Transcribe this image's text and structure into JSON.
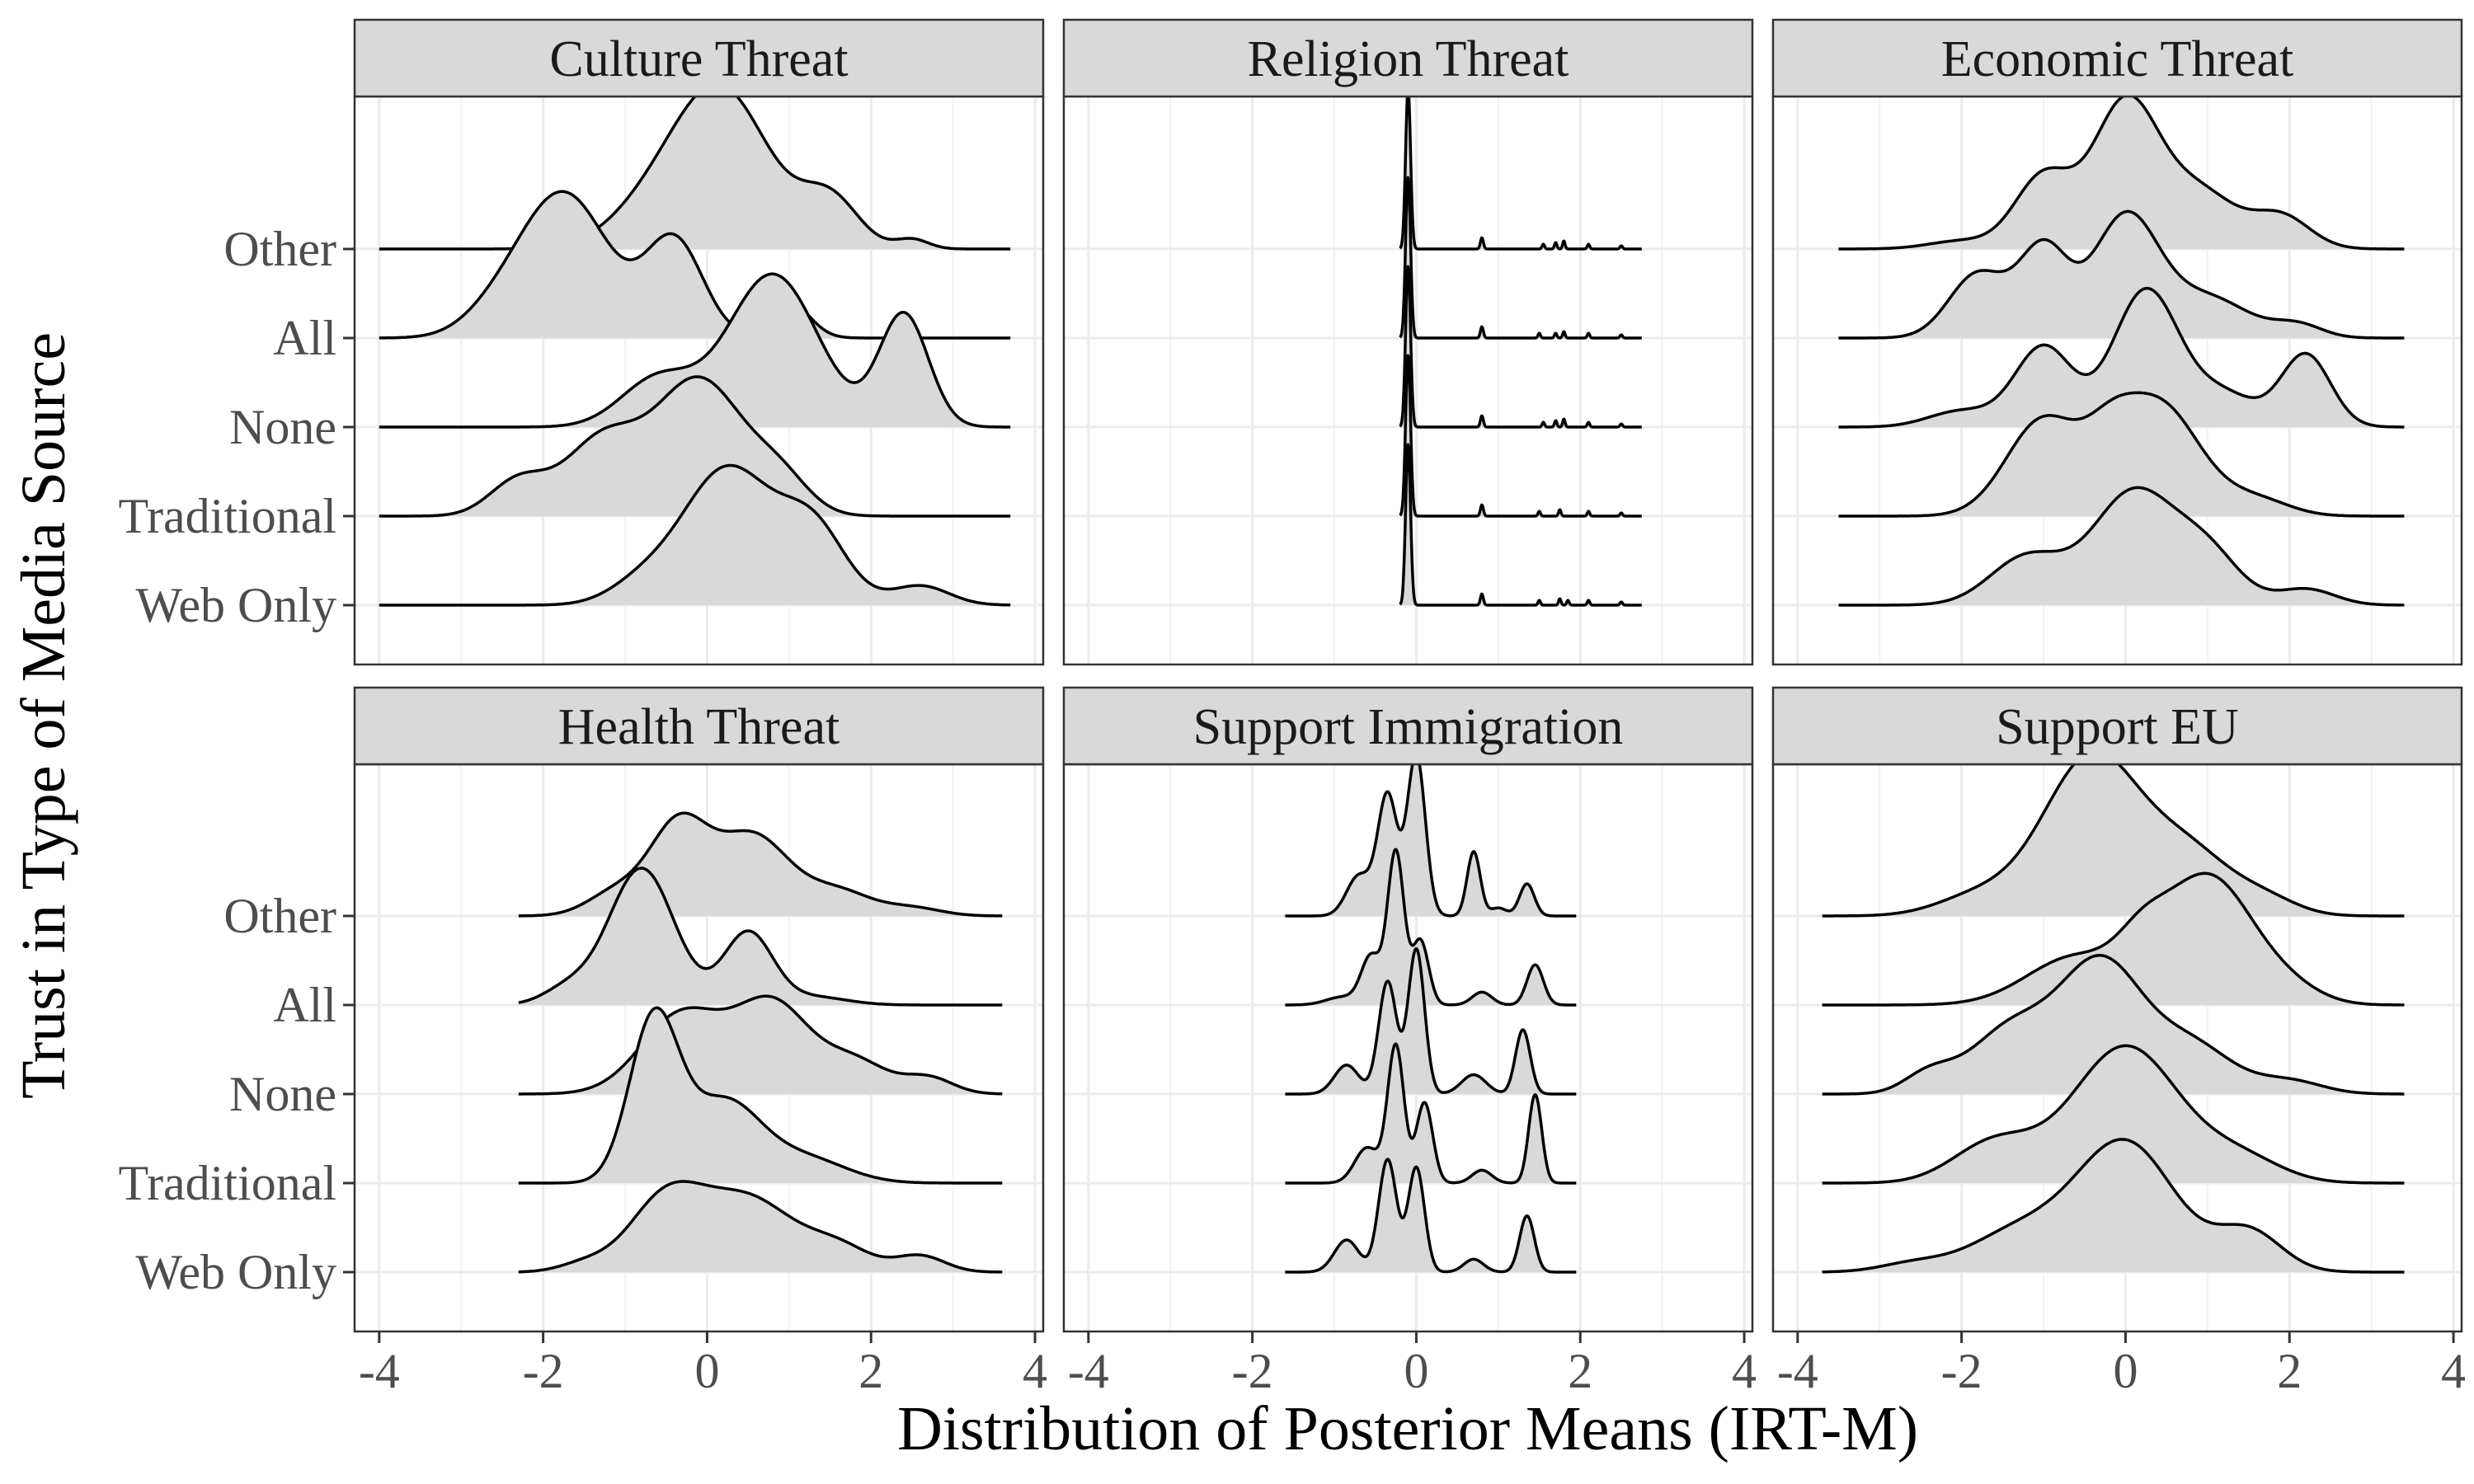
{
  "chart_data": {
    "type": "ridgeline",
    "layout": "facet grid, 2 rows x 3 columns",
    "xlabel": "Distribution of Posterior Means (IRT-M)",
    "ylabel": "Trust in Type of Media Source",
    "x_ticks": [
      "-4",
      "-2",
      "0",
      "2",
      "4"
    ],
    "xlim": [
      -4.3,
      4.1
    ],
    "grid": true,
    "fill_color": "#d9d9d9",
    "line_color": "#000000",
    "strip_color": "#d9d9d9",
    "groups": [
      "Other",
      "All",
      "None",
      "Traditional",
      "Web Only"
    ],
    "panels": [
      {
        "title": "Culture Threat",
        "range": [
          -4.0,
          3.7
        ],
        "series": [
          {
            "name": "Other",
            "peaks": [
              [
                0.15,
                1.0,
                0.6
              ],
              [
                1.5,
                0.3,
                0.35
              ],
              [
                -0.8,
                0.15,
                0.5
              ],
              [
                2.5,
                0.06,
                0.2
              ]
            ]
          },
          {
            "name": "All",
            "peaks": [
              [
                -1.75,
                0.9,
                0.55
              ],
              [
                -0.4,
                0.6,
                0.35
              ],
              [
                1.0,
                0.22,
                0.25
              ],
              [
                -2.6,
                0.1,
                0.4
              ]
            ]
          },
          {
            "name": "None",
            "peaks": [
              [
                0.8,
                0.95,
                0.55
              ],
              [
                2.4,
                0.7,
                0.3
              ],
              [
                -0.6,
                0.3,
                0.45
              ]
            ]
          },
          {
            "name": "Traditional",
            "peaks": [
              [
                -0.1,
                0.85,
                0.55
              ],
              [
                -1.3,
                0.45,
                0.45
              ],
              [
                -2.3,
                0.22,
                0.35
              ],
              [
                0.9,
                0.2,
                0.35
              ]
            ]
          },
          {
            "name": "Web Only",
            "peaks": [
              [
                0.25,
                0.85,
                0.55
              ],
              [
                1.3,
                0.45,
                0.4
              ],
              [
                -0.8,
                0.12,
                0.4
              ],
              [
                2.6,
                0.12,
                0.35
              ]
            ]
          }
        ]
      },
      {
        "title": "Religion Threat",
        "range": [
          -0.2,
          2.75
        ],
        "series": [
          {
            "name": "Other",
            "peaks": [
              [
                -0.1,
                1.0,
                0.03
              ],
              [
                0.8,
                0.07,
                0.018
              ],
              [
                1.55,
                0.03,
                0.015
              ],
              [
                1.7,
                0.04,
                0.015
              ],
              [
                1.8,
                0.05,
                0.015
              ],
              [
                2.1,
                0.03,
                0.015
              ],
              [
                2.5,
                0.02,
                0.015
              ]
            ]
          },
          {
            "name": "All",
            "peaks": [
              [
                -0.1,
                1.0,
                0.03
              ],
              [
                0.8,
                0.07,
                0.018
              ],
              [
                1.5,
                0.03,
                0.015
              ],
              [
                1.7,
                0.03,
                0.015
              ],
              [
                1.8,
                0.04,
                0.015
              ],
              [
                2.1,
                0.03,
                0.015
              ],
              [
                2.5,
                0.02,
                0.015
              ]
            ]
          },
          {
            "name": "None",
            "peaks": [
              [
                -0.1,
                1.0,
                0.03
              ],
              [
                0.8,
                0.07,
                0.018
              ],
              [
                1.55,
                0.03,
                0.015
              ],
              [
                1.7,
                0.04,
                0.015
              ],
              [
                1.8,
                0.05,
                0.015
              ],
              [
                2.1,
                0.03,
                0.015
              ],
              [
                2.5,
                0.02,
                0.015
              ]
            ]
          },
          {
            "name": "Traditional",
            "peaks": [
              [
                -0.1,
                1.0,
                0.03
              ],
              [
                0.8,
                0.07,
                0.018
              ],
              [
                1.5,
                0.03,
                0.015
              ],
              [
                1.75,
                0.04,
                0.015
              ],
              [
                2.1,
                0.03,
                0.015
              ],
              [
                2.5,
                0.02,
                0.015
              ]
            ]
          },
          {
            "name": "Web Only",
            "peaks": [
              [
                -0.1,
                1.0,
                0.03
              ],
              [
                0.8,
                0.07,
                0.018
              ],
              [
                1.5,
                0.03,
                0.015
              ],
              [
                1.75,
                0.04,
                0.015
              ],
              [
                1.85,
                0.03,
                0.015
              ],
              [
                2.1,
                0.03,
                0.015
              ],
              [
                2.5,
                0.02,
                0.015
              ]
            ]
          }
        ]
      },
      {
        "title": "Economic Threat",
        "range": [
          -3.5,
          3.4
        ],
        "series": [
          {
            "name": "Other",
            "peaks": [
              [
                0.0,
                0.9,
                0.4
              ],
              [
                -1.0,
                0.45,
                0.35
              ],
              [
                0.9,
                0.35,
                0.45
              ],
              [
                1.9,
                0.2,
                0.35
              ],
              [
                -2.0,
                0.05,
                0.4
              ]
            ]
          },
          {
            "name": "All",
            "peaks": [
              [
                0.0,
                0.75,
                0.4
              ],
              [
                -1.0,
                0.55,
                0.3
              ],
              [
                -1.8,
                0.4,
                0.35
              ],
              [
                1.0,
                0.25,
                0.5
              ],
              [
                2.1,
                0.08,
                0.3
              ]
            ]
          },
          {
            "name": "None",
            "peaks": [
              [
                0.25,
                0.85,
                0.4
              ],
              [
                -1.0,
                0.5,
                0.35
              ],
              [
                2.2,
                0.45,
                0.3
              ],
              [
                1.2,
                0.2,
                0.4
              ],
              [
                -2.0,
                0.1,
                0.4
              ]
            ]
          },
          {
            "name": "Traditional",
            "peaks": [
              [
                -1.0,
                0.6,
                0.45
              ],
              [
                0.4,
                0.7,
                0.5
              ],
              [
                -0.2,
                0.25,
                0.3
              ],
              [
                1.6,
                0.1,
                0.4
              ]
            ]
          },
          {
            "name": "Web Only",
            "peaks": [
              [
                0.1,
                0.7,
                0.5
              ],
              [
                -1.2,
                0.3,
                0.45
              ],
              [
                1.0,
                0.3,
                0.4
              ],
              [
                2.2,
                0.1,
                0.35
              ]
            ]
          }
        ]
      },
      {
        "title": "Health Threat",
        "range": [
          -2.3,
          3.6
        ],
        "series": [
          {
            "name": "Other",
            "peaks": [
              [
                -0.35,
                0.55,
                0.35
              ],
              [
                0.55,
                0.5,
                0.45
              ],
              [
                -1.1,
                0.15,
                0.35
              ],
              [
                1.6,
                0.15,
                0.4
              ],
              [
                2.5,
                0.05,
                0.35
              ]
            ]
          },
          {
            "name": "All",
            "peaks": [
              [
                -0.8,
                0.85,
                0.4
              ],
              [
                0.5,
                0.45,
                0.3
              ],
              [
                1.3,
                0.05,
                0.4
              ],
              [
                -1.7,
                0.1,
                0.3
              ]
            ]
          },
          {
            "name": "None",
            "peaks": [
              [
                0.8,
                0.55,
                0.45
              ],
              [
                -0.3,
                0.5,
                0.5
              ],
              [
                1.8,
                0.2,
                0.4
              ],
              [
                2.7,
                0.1,
                0.3
              ]
            ]
          },
          {
            "name": "Traditional",
            "peaks": [
              [
                -0.65,
                1.0,
                0.3
              ],
              [
                0.2,
                0.5,
                0.45
              ],
              [
                1.2,
                0.15,
                0.5
              ]
            ]
          },
          {
            "name": "Web Only",
            "peaks": [
              [
                -0.5,
                0.45,
                0.45
              ],
              [
                0.5,
                0.45,
                0.55
              ],
              [
                1.6,
                0.15,
                0.4
              ],
              [
                2.6,
                0.1,
                0.3
              ],
              [
                -1.5,
                0.05,
                0.3
              ]
            ]
          }
        ]
      },
      {
        "title": "Support Immigration",
        "range": [
          -1.6,
          1.95
        ],
        "series": [
          {
            "name": "Other",
            "peaks": [
              [
                -0.35,
                0.75,
                0.12
              ],
              [
                0.0,
                1.0,
                0.11
              ],
              [
                -0.7,
                0.25,
                0.15
              ],
              [
                0.7,
                0.4,
                0.08
              ],
              [
                1.35,
                0.2,
                0.09
              ],
              [
                1.0,
                0.05,
                0.1
              ]
            ]
          },
          {
            "name": "All",
            "peaks": [
              [
                -0.25,
                0.95,
                0.1
              ],
              [
                0.05,
                0.4,
                0.1
              ],
              [
                -0.55,
                0.3,
                0.12
              ],
              [
                -0.9,
                0.05,
                0.2
              ],
              [
                0.8,
                0.08,
                0.12
              ],
              [
                1.45,
                0.25,
                0.1
              ]
            ]
          },
          {
            "name": "None",
            "peaks": [
              [
                -0.35,
                0.7,
                0.11
              ],
              [
                0.0,
                0.9,
                0.1
              ],
              [
                -0.85,
                0.18,
                0.15
              ],
              [
                0.7,
                0.12,
                0.15
              ],
              [
                1.3,
                0.4,
                0.09
              ]
            ]
          },
          {
            "name": "Traditional",
            "peaks": [
              [
                -0.25,
                0.85,
                0.1
              ],
              [
                0.1,
                0.5,
                0.1
              ],
              [
                -0.6,
                0.22,
                0.15
              ],
              [
                0.8,
                0.08,
                0.12
              ],
              [
                1.45,
                0.55,
                0.08
              ]
            ]
          },
          {
            "name": "Web Only",
            "peaks": [
              [
                -0.35,
                0.7,
                0.11
              ],
              [
                0.0,
                0.65,
                0.1
              ],
              [
                -0.85,
                0.2,
                0.15
              ],
              [
                0.7,
                0.08,
                0.12
              ],
              [
                1.35,
                0.35,
                0.09
              ]
            ]
          }
        ]
      },
      {
        "title": "Support EU",
        "range": [
          -3.7,
          3.4
        ],
        "series": [
          {
            "name": "Other",
            "peaks": [
              [
                -0.4,
                1.0,
                0.6
              ],
              [
                0.8,
                0.35,
                0.5
              ],
              [
                -1.8,
                0.12,
                0.5
              ],
              [
                1.7,
                0.1,
                0.4
              ]
            ]
          },
          {
            "name": "All",
            "peaks": [
              [
                1.0,
                0.8,
                0.55
              ],
              [
                -0.6,
                0.3,
                0.6
              ],
              [
                0.2,
                0.2,
                0.3
              ],
              [
                2.0,
                0.08,
                0.4
              ]
            ]
          },
          {
            "name": "None",
            "peaks": [
              [
                -0.3,
                0.8,
                0.5
              ],
              [
                -1.4,
                0.4,
                0.5
              ],
              [
                0.8,
                0.3,
                0.5
              ],
              [
                -2.4,
                0.12,
                0.3
              ],
              [
                2.0,
                0.08,
                0.4
              ]
            ]
          },
          {
            "name": "Traditional",
            "peaks": [
              [
                0.0,
                0.85,
                0.65
              ],
              [
                -1.6,
                0.25,
                0.5
              ],
              [
                1.4,
                0.15,
                0.5
              ]
            ]
          },
          {
            "name": "Web Only",
            "peaks": [
              [
                0.0,
                0.8,
                0.6
              ],
              [
                -1.3,
                0.25,
                0.6
              ],
              [
                1.5,
                0.25,
                0.4
              ],
              [
                -2.6,
                0.05,
                0.4
              ]
            ]
          }
        ]
      }
    ]
  }
}
